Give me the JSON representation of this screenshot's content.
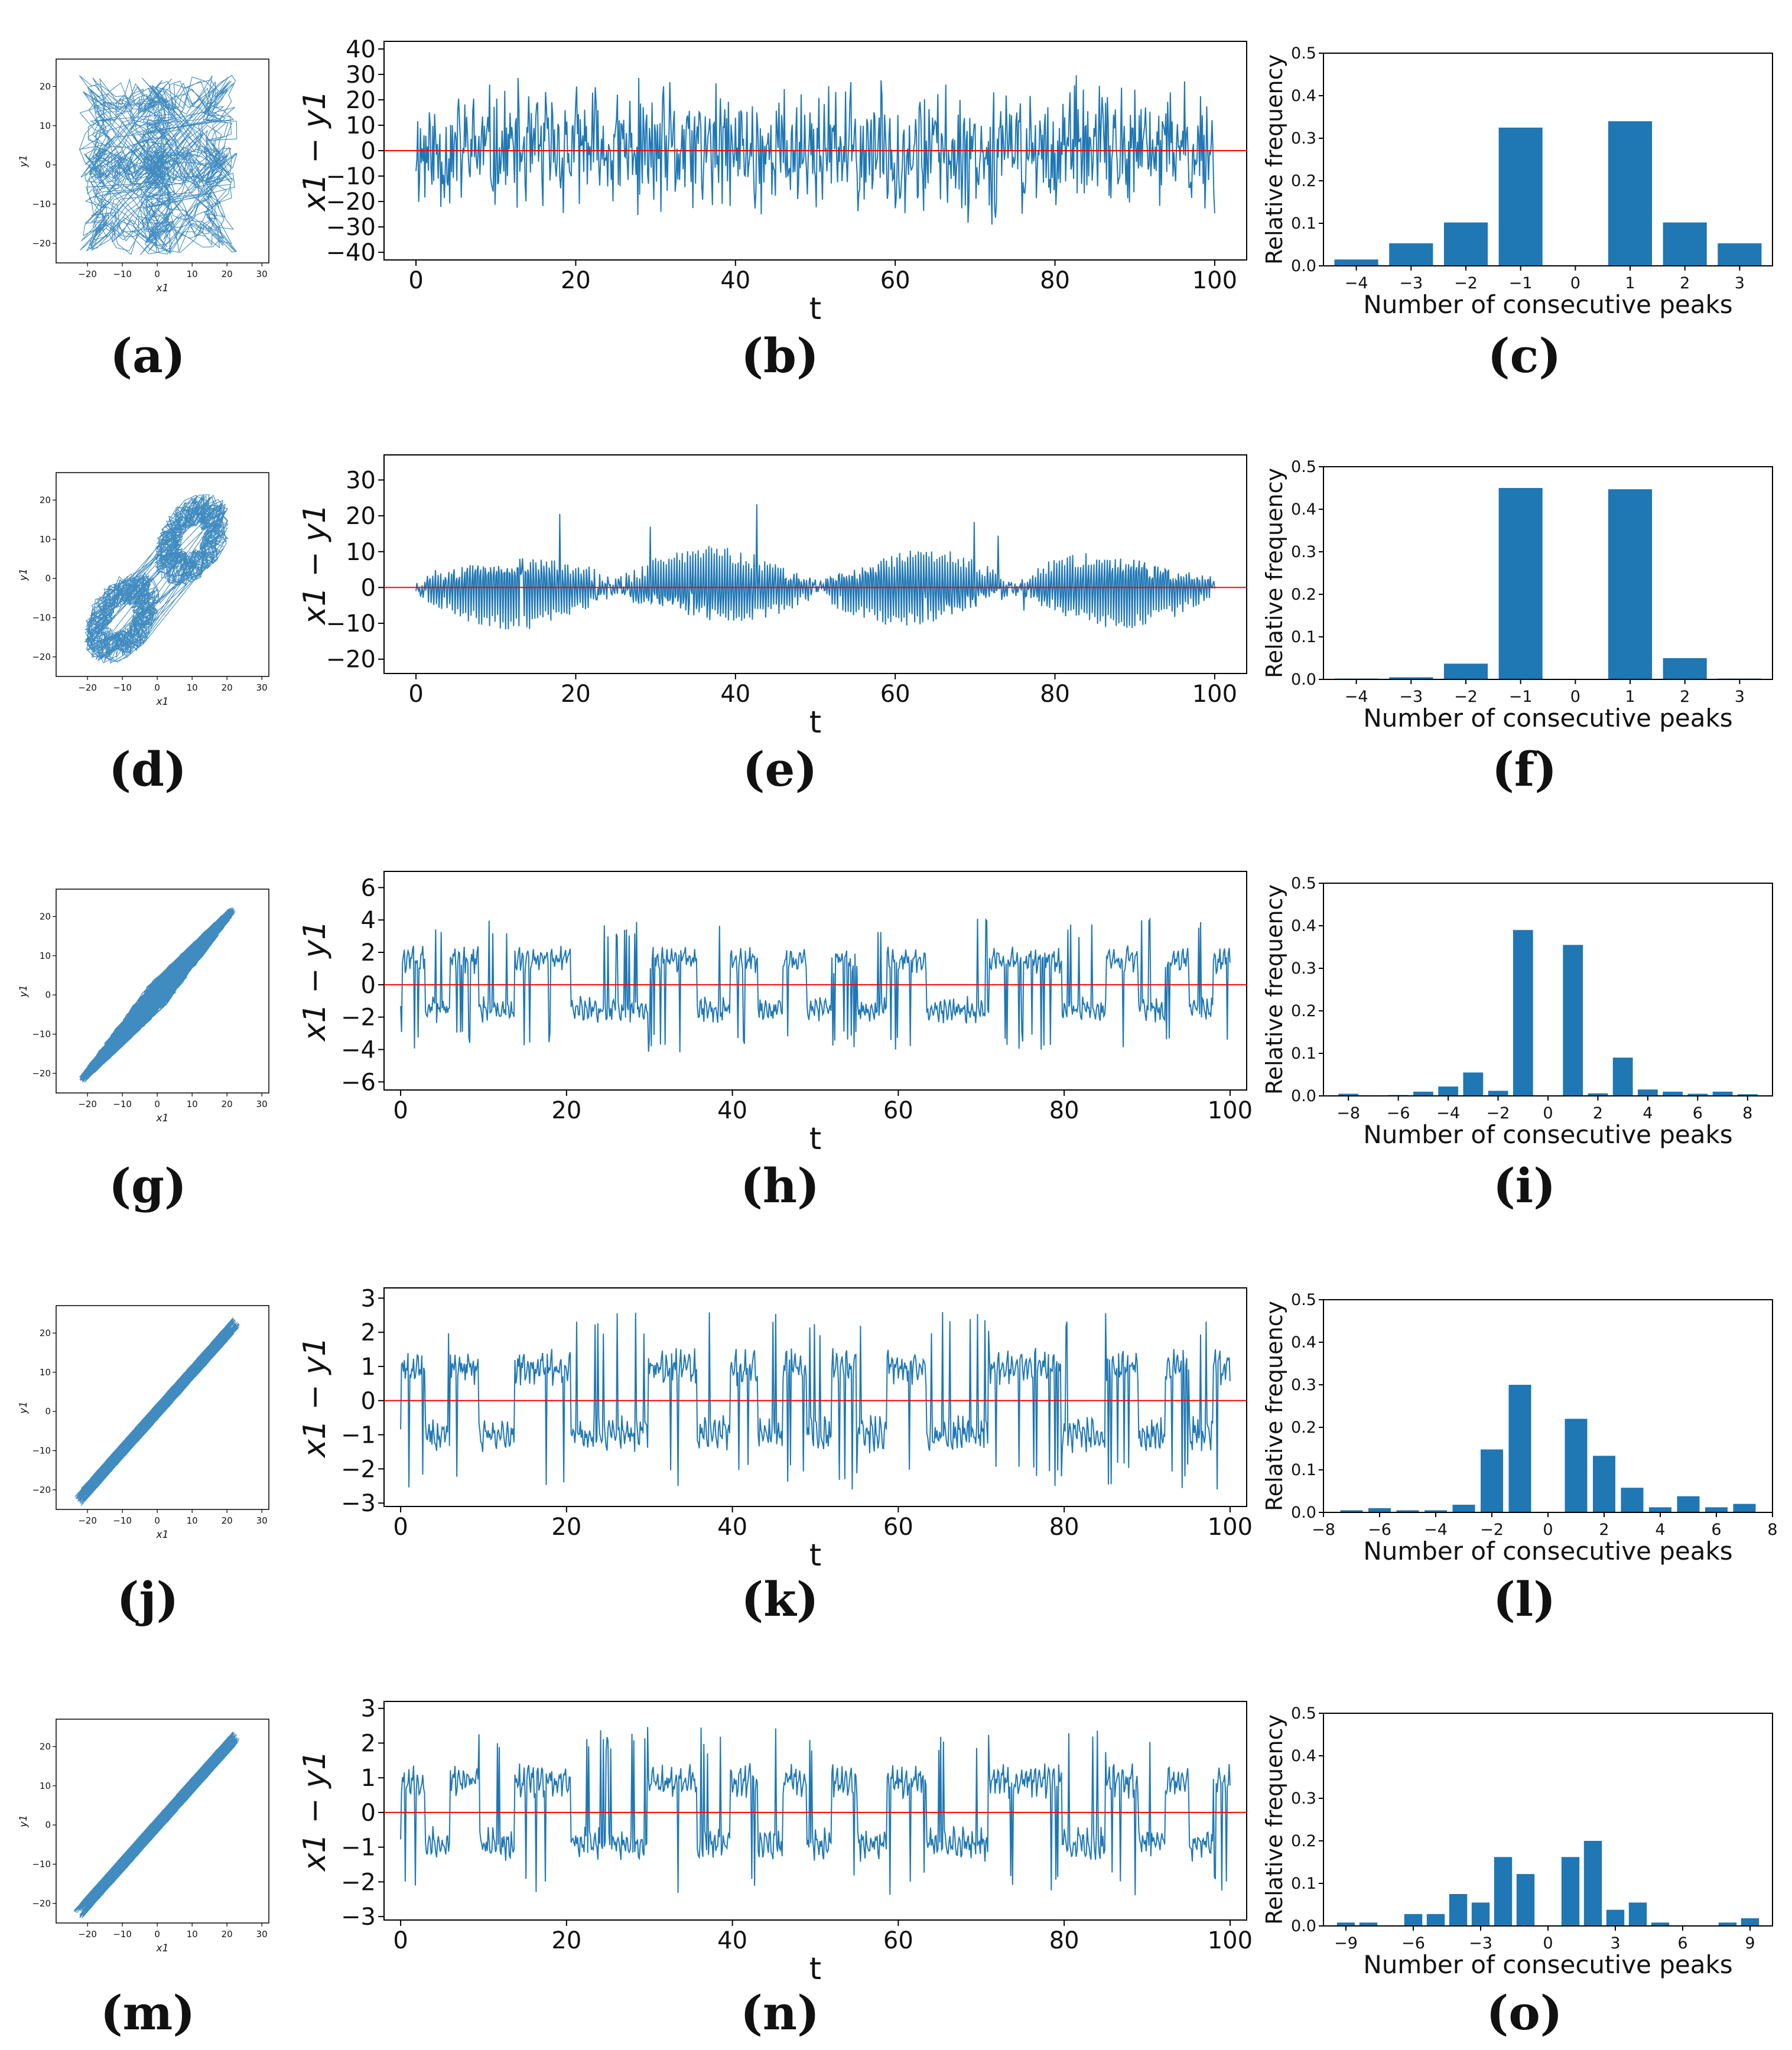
{
  "rows": [
    {
      "scatter": {
        "label": "(a)",
        "type": "scatter-trajectory",
        "xlabel": "x1",
        "ylabel": "y1",
        "xticks": [
          -20,
          -10,
          0,
          10,
          20,
          30
        ],
        "yticks": [
          -20,
          -10,
          0,
          10,
          20
        ],
        "xlim": [
          -29,
          32
        ],
        "ylim": [
          -25,
          27
        ],
        "spread": "wide"
      },
      "series": {
        "label": "(b)",
        "type": "line",
        "xlabel": "t",
        "ylabel": "x1 − y1",
        "xticks": [
          0,
          20,
          40,
          60,
          80,
          100
        ],
        "yticks": [
          -40,
          -30,
          -20,
          -10,
          0,
          10,
          20,
          30,
          40
        ],
        "xlim": [
          -4,
          104
        ],
        "ylim": [
          -43,
          43
        ],
        "amplitude": 25,
        "seed": 11,
        "reference_line": 0
      },
      "hist": {
        "label": "(c)",
        "type": "bar",
        "xlabel": "Number of consecutive peaks",
        "ylabel": "Relative frequency",
        "xticks": [
          -4,
          -3,
          -2,
          -1,
          0,
          1,
          2,
          3
        ],
        "yticks": [
          0.0,
          0.1,
          0.2,
          0.3,
          0.4,
          0.5
        ],
        "xlim": [
          -4.6,
          3.6
        ],
        "ylim": [
          0,
          0.5
        ],
        "categories": [
          -4,
          -3,
          -2,
          -1,
          0,
          1,
          2,
          3
        ],
        "values": [
          0.015,
          0.053,
          0.102,
          0.325,
          0.0,
          0.34,
          0.102,
          0.053
        ]
      }
    },
    {
      "scatter": {
        "label": "(d)",
        "type": "scatter-trajectory",
        "xlabel": "x1",
        "ylabel": "y1",
        "xticks": [
          -20,
          -10,
          0,
          10,
          20,
          30
        ],
        "yticks": [
          -20,
          -10,
          0,
          10,
          20
        ],
        "xlim": [
          -29,
          32
        ],
        "ylim": [
          -25,
          27
        ],
        "spread": "two-lobes"
      },
      "series": {
        "label": "(e)",
        "type": "line",
        "xlabel": "t",
        "ylabel": "x1 − y1",
        "xticks": [
          0,
          20,
          40,
          60,
          80,
          100
        ],
        "yticks": [
          -20,
          -10,
          0,
          10,
          20,
          30
        ],
        "xlim": [
          -4,
          104
        ],
        "ylim": [
          -24,
          37
        ],
        "amplitude": 10,
        "seed": 23,
        "reference_line": 0
      },
      "hist": {
        "label": "(f)",
        "type": "bar",
        "xlabel": "Number of consecutive peaks",
        "ylabel": "Relative frequency",
        "xticks": [
          -4,
          -3,
          -2,
          -1,
          0,
          1,
          2,
          3
        ],
        "yticks": [
          0.0,
          0.1,
          0.2,
          0.3,
          0.4,
          0.5
        ],
        "xlim": [
          -4.6,
          3.6
        ],
        "ylim": [
          0,
          0.5
        ],
        "categories": [
          -4,
          -3,
          -2,
          -1,
          0,
          1,
          2,
          3
        ],
        "values": [
          0.002,
          0.005,
          0.037,
          0.45,
          0.0,
          0.447,
          0.05,
          0.002
        ]
      }
    },
    {
      "scatter": {
        "label": "(g)",
        "type": "scatter-trajectory",
        "xlabel": "x1",
        "ylabel": "y1",
        "xticks": [
          -20,
          -10,
          0,
          10,
          20,
          30
        ],
        "yticks": [
          -20,
          -10,
          0,
          10,
          20
        ],
        "xlim": [
          -29,
          32
        ],
        "ylim": [
          -25,
          27
        ],
        "spread": "diagonal-wide"
      },
      "series": {
        "label": "(h)",
        "type": "line",
        "xlabel": "t",
        "ylabel": "x1 − y1",
        "xticks": [
          0,
          20,
          40,
          60,
          80,
          100
        ],
        "yticks": [
          -6,
          -4,
          -2,
          0,
          2,
          4,
          6
        ],
        "xlim": [
          -2,
          102
        ],
        "ylim": [
          -6.5,
          7
        ],
        "amplitude": 2.2,
        "seed": 37,
        "reference_line": 0
      },
      "hist": {
        "label": "(i)",
        "type": "bar",
        "xlabel": "Number of consecutive peaks",
        "ylabel": "Relative frequency",
        "xticks": [
          -8,
          -6,
          -4,
          -2,
          0,
          2,
          4,
          6,
          8
        ],
        "yticks": [
          0.0,
          0.1,
          0.2,
          0.3,
          0.4,
          0.5
        ],
        "xlim": [
          -9,
          9
        ],
        "ylim": [
          0,
          0.5
        ],
        "categories": [
          -8,
          -7,
          -6,
          -5,
          -4,
          -3,
          -2,
          -1,
          0,
          1,
          2,
          3,
          4,
          5,
          6,
          7,
          8
        ],
        "values": [
          0.005,
          0.0,
          0.002,
          0.01,
          0.022,
          0.055,
          0.012,
          0.39,
          0.0,
          0.355,
          0.006,
          0.09,
          0.015,
          0.01,
          0.005,
          0.01,
          0.004
        ]
      }
    },
    {
      "scatter": {
        "label": "(j)",
        "type": "scatter-trajectory",
        "xlabel": "x1",
        "ylabel": "y1",
        "xticks": [
          -20,
          -10,
          0,
          10,
          20,
          30
        ],
        "yticks": [
          -20,
          -10,
          0,
          10,
          20
        ],
        "xlim": [
          -29,
          32
        ],
        "ylim": [
          -25,
          27
        ],
        "spread": "diagonal-thin"
      },
      "series": {
        "label": "(k)",
        "type": "line",
        "xlabel": "t",
        "ylabel": "x1 − y1",
        "xticks": [
          0,
          20,
          40,
          60,
          80,
          100
        ],
        "yticks": [
          -3,
          -2,
          -1,
          0,
          1,
          2,
          3
        ],
        "xlim": [
          -2,
          102
        ],
        "ylim": [
          -3.1,
          3.3
        ],
        "amplitude": 1.4,
        "seed": 41,
        "reference_line": 0
      },
      "hist": {
        "label": "(l)",
        "type": "bar",
        "xlabel": "Number of consecutive peaks",
        "ylabel": "Relative frequency",
        "xticks": [
          -8,
          -6,
          -4,
          -2,
          0,
          2,
          4,
          6,
          8
        ],
        "yticks": [
          0.0,
          0.1,
          0.2,
          0.3,
          0.4,
          0.5
        ],
        "xlim": [
          -8,
          8
        ],
        "ylim": [
          0,
          0.5
        ],
        "categories": [
          -7,
          -6,
          -5,
          -4,
          -3,
          -2,
          -1,
          0,
          1,
          2,
          3,
          4,
          5,
          6,
          7
        ],
        "values": [
          0.005,
          0.01,
          0.005,
          0.005,
          0.018,
          0.148,
          0.3,
          0.0,
          0.22,
          0.133,
          0.058,
          0.012,
          0.038,
          0.012,
          0.02
        ]
      }
    },
    {
      "scatter": {
        "label": "(m)",
        "type": "scatter-trajectory",
        "xlabel": "x1",
        "ylabel": "y1",
        "xticks": [
          -20,
          -10,
          0,
          10,
          20,
          30
        ],
        "yticks": [
          -20,
          -10,
          0,
          10,
          20
        ],
        "xlim": [
          -29,
          32
        ],
        "ylim": [
          -25,
          27
        ],
        "spread": "diagonal-thin"
      },
      "series": {
        "label": "(n)",
        "type": "line",
        "xlabel": "t",
        "ylabel": "x1 − y1",
        "xticks": [
          0,
          20,
          40,
          60,
          80,
          100
        ],
        "yticks": [
          -3,
          -2,
          -1,
          0,
          1,
          2,
          3
        ],
        "xlim": [
          -2,
          102
        ],
        "ylim": [
          -3.1,
          3.2
        ],
        "amplitude": 1.3,
        "seed": 53,
        "reference_line": 0
      },
      "hist": {
        "label": "(o)",
        "type": "bar",
        "xlabel": "Number of consecutive peaks",
        "ylabel": "Relative frequency",
        "xticks": [
          -9,
          -6,
          -3,
          0,
          3,
          6,
          9
        ],
        "yticks": [
          0.0,
          0.1,
          0.2,
          0.3,
          0.4,
          0.5
        ],
        "xlim": [
          -10,
          10
        ],
        "ylim": [
          0,
          0.5
        ],
        "categories": [
          -9,
          -8,
          -7,
          -6,
          -5,
          -4,
          -3,
          -2,
          -1,
          0,
          1,
          2,
          3,
          4,
          5,
          6,
          7,
          8,
          9
        ],
        "values": [
          0.008,
          0.008,
          0.0,
          0.028,
          0.028,
          0.075,
          0.055,
          0.162,
          0.122,
          0.0,
          0.162,
          0.2,
          0.038,
          0.055,
          0.008,
          0.0,
          0.0,
          0.008,
          0.018
        ]
      }
    }
  ],
  "colors": {
    "line": "#1f77b4",
    "bar": "#1f77b4",
    "reference": "#ff0000",
    "axis": "#000000"
  }
}
